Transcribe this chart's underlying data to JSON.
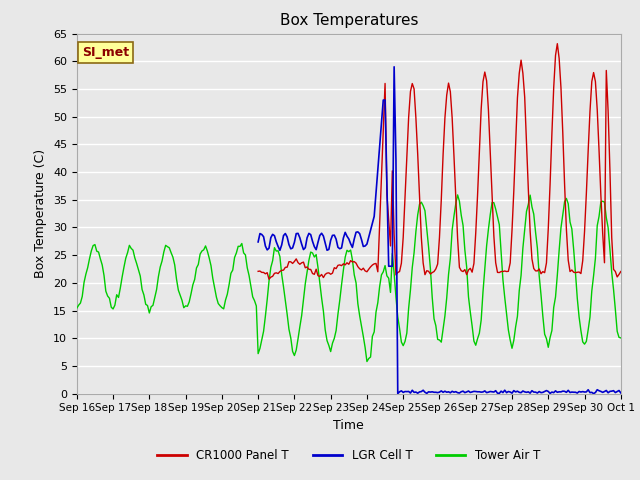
{
  "title": "Box Temperatures",
  "xlabel": "Time",
  "ylabel": "Box Temperature (C)",
  "ylim": [
    0,
    65
  ],
  "yticks": [
    0,
    5,
    10,
    15,
    20,
    25,
    30,
    35,
    40,
    45,
    50,
    55,
    60,
    65
  ],
  "bg_color": "#e8e8e8",
  "grid_color": "#ffffff",
  "annotation_text": "SI_met",
  "annotation_bg": "#ffff99",
  "annotation_border": "#8b6914",
  "cr1000_color": "#cc0000",
  "lgr_color": "#0000cc",
  "tower_color": "#00cc00",
  "xtick_labels": [
    "Sep 16",
    "Sep 17",
    "Sep 18",
    "Sep 19",
    "Sep 20",
    "Sep 21",
    "Sep 22",
    "Sep 23",
    "Sep 24",
    "Sep 25",
    "Sep 26",
    "Sep 27",
    "Sep 28",
    "Sep 29",
    "Sep 30",
    "Oct 1"
  ],
  "legend_labels": [
    "CR1000 Panel T",
    "LGR Cell T",
    "Tower Air T"
  ]
}
